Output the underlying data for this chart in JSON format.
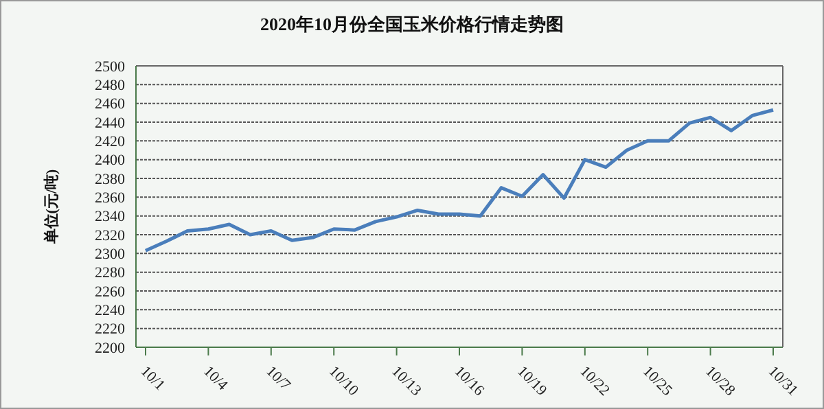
{
  "chart_data": {
    "type": "line",
    "title": "2020年10月份全国玉米价格行情走势图",
    "ylabel": "单位(元/吨)",
    "categories": [
      "10/1",
      null,
      null,
      "10/4",
      null,
      null,
      "10/7",
      null,
      null,
      "10/10",
      null,
      null,
      "10/13",
      null,
      null,
      "10/16",
      null,
      null,
      "10/19",
      null,
      null,
      "10/22",
      null,
      null,
      "10/25",
      null,
      null,
      "10/28",
      null,
      null,
      "10/31"
    ],
    "series": [
      {
        "color": "#4a7ebb",
        "values": [
          2303,
          2313,
          2324,
          2326,
          2331,
          2320,
          2324,
          2314,
          2317,
          2326,
          2325,
          2334,
          2339,
          2346,
          2342,
          2342,
          2340,
          2370,
          2361,
          2384,
          2359,
          2400,
          2392,
          2410,
          2420,
          2420,
          2439,
          2445,
          2431,
          2447,
          2453
        ]
      }
    ],
    "ylim": [
      2200,
      2500
    ],
    "yticks": [
      2200,
      2220,
      2240,
      2260,
      2280,
      2300,
      2320,
      2340,
      2360,
      2380,
      2400,
      2420,
      2440,
      2460,
      2480,
      2500
    ],
    "grid": "y",
    "marker": "none",
    "line_style": "solid"
  }
}
